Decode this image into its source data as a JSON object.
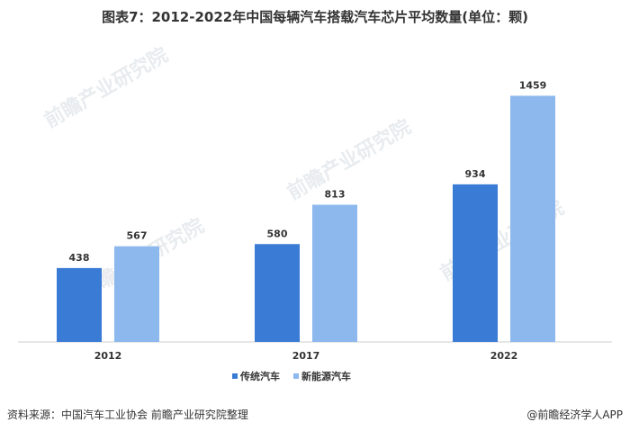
{
  "title": "图表7：2012-2022年中国每辆汽车搭载汽车芯片平均数量(单位：颗)",
  "source": "资料来源：中国汽车工业协会 前瞻产业研究院整理",
  "brand": "@前瞻经济学人APP",
  "watermark": "前瞻产业研究院",
  "colors": {
    "traditional": "#3a7bd5",
    "nev": "#8db8ee"
  },
  "chart_data": {
    "type": "bar",
    "title": "图表7：2012-2022年中国每辆汽车搭载汽车芯片平均数量(单位：颗)",
    "xlabel": "",
    "ylabel": "",
    "categories": [
      "2012",
      "2017",
      "2022"
    ],
    "series": [
      {
        "name": "传统汽车",
        "values": [
          438,
          580,
          934
        ]
      },
      {
        "name": "新能源汽车",
        "values": [
          567,
          813,
          1459
        ]
      }
    ],
    "ylim": [
      0,
      1600
    ],
    "grid": false,
    "legend": "bottom"
  }
}
